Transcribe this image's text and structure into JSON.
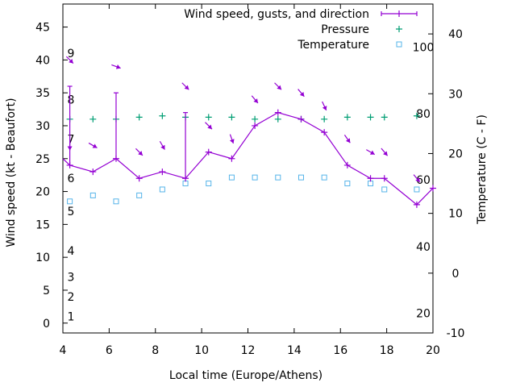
{
  "chart_data": {
    "type": "line",
    "xlabel": "Local time (Europe/Athens)",
    "ylabel": "Wind speed (kt - Beaufort)",
    "y2label": "Temperature (C - F)",
    "xlim": [
      4,
      20
    ],
    "ylim": [
      -1.5,
      48.5
    ],
    "y2lim": [
      -10,
      45
    ],
    "x_ticks": [
      "4",
      "6",
      "8",
      "10",
      "12",
      "14",
      "16",
      "18",
      "20"
    ],
    "y_ticks": [
      "0",
      "5",
      "10",
      "15",
      "20",
      "25",
      "30",
      "35",
      "40",
      "45"
    ],
    "y2_ticks": [
      "-10",
      "0",
      "10",
      "20",
      "30",
      "40"
    ],
    "beaufort_labels": [
      {
        "text": "1",
        "y": 1
      },
      {
        "text": "2",
        "y": 4
      },
      {
        "text": "3",
        "y": 7
      },
      {
        "text": "4",
        "y": 11
      },
      {
        "text": "5",
        "y": 17
      },
      {
        "text": "6",
        "y": 22
      },
      {
        "text": "7",
        "y": 28
      },
      {
        "text": "8",
        "y": 34
      },
      {
        "text": "9",
        "y": 41
      }
    ],
    "fahrenheit_labels": [
      {
        "text": "20",
        "c": -6.7
      },
      {
        "text": "40",
        "c": 4.4
      },
      {
        "text": "60",
        "c": 15.6
      },
      {
        "text": "80",
        "c": 26.7
      },
      {
        "text": "100",
        "c": 37.8
      }
    ],
    "legend_position": "top-right",
    "series": [
      {
        "name": "Wind speed, gusts, and direction",
        "color": "#9400d3",
        "x": [
          3.8,
          4.3,
          5.3,
          6.3,
          7.3,
          8.3,
          9.3,
          10.3,
          11.3,
          12.3,
          13.3,
          14.3,
          15.3,
          16.3,
          17.3,
          17.9,
          19.3,
          20.0
        ],
        "values": [
          25,
          24,
          23,
          25,
          22,
          23,
          22,
          26,
          25,
          30,
          32,
          31,
          29,
          24,
          22,
          22,
          18,
          20.5
        ],
        "gusts": [
          {
            "x": 4.3,
            "high": 36
          },
          {
            "x": 6.3,
            "high": 35
          },
          {
            "x": 9.3,
            "high": 32
          }
        ],
        "directions": [
          {
            "x": 4.3,
            "y": 40,
            "deg": 315
          },
          {
            "x": 4.3,
            "y": 27,
            "deg": 0
          },
          {
            "x": 5.3,
            "y": 27,
            "deg": 300
          },
          {
            "x": 6.3,
            "y": 39,
            "deg": 290
          },
          {
            "x": 7.3,
            "y": 26,
            "deg": 315
          },
          {
            "x": 8.3,
            "y": 27,
            "deg": 330
          },
          {
            "x": 9.3,
            "y": 36,
            "deg": 315
          },
          {
            "x": 10.3,
            "y": 30,
            "deg": 315
          },
          {
            "x": 11.3,
            "y": 28,
            "deg": 340
          },
          {
            "x": 12.3,
            "y": 34,
            "deg": 320
          },
          {
            "x": 13.3,
            "y": 36,
            "deg": 315
          },
          {
            "x": 14.3,
            "y": 35,
            "deg": 320
          },
          {
            "x": 15.3,
            "y": 33,
            "deg": 335
          },
          {
            "x": 16.3,
            "y": 28,
            "deg": 325
          },
          {
            "x": 17.3,
            "y": 26,
            "deg": 300
          },
          {
            "x": 17.9,
            "y": 26,
            "deg": 320
          },
          {
            "x": 19.3,
            "y": 22,
            "deg": 320
          }
        ]
      },
      {
        "name": "Pressure",
        "color": "#009e73",
        "marker": "+",
        "x": [
          4.3,
          5.3,
          6.3,
          7.3,
          8.3,
          9.3,
          10.3,
          11.3,
          12.3,
          13.3,
          14.3,
          15.3,
          16.3,
          17.3,
          17.9,
          19.3
        ],
        "values": [
          31,
          31,
          31,
          31.3,
          31.5,
          31.3,
          31.3,
          31.3,
          31,
          31,
          31,
          31,
          31.3,
          31.3,
          31.3,
          31.5
        ]
      },
      {
        "name": "Temperature",
        "color": "#56b4e9",
        "marker": "square",
        "axis": "y2",
        "x": [
          4.3,
          5.3,
          6.3,
          7.3,
          8.3,
          9.3,
          10.3,
          11.3,
          12.3,
          13.3,
          14.3,
          15.3,
          16.3,
          17.3,
          17.9,
          19.3
        ],
        "values": [
          12,
          13,
          12,
          13,
          14,
          15,
          15,
          16,
          16,
          16,
          16,
          16,
          15,
          15,
          14,
          14
        ]
      }
    ]
  }
}
